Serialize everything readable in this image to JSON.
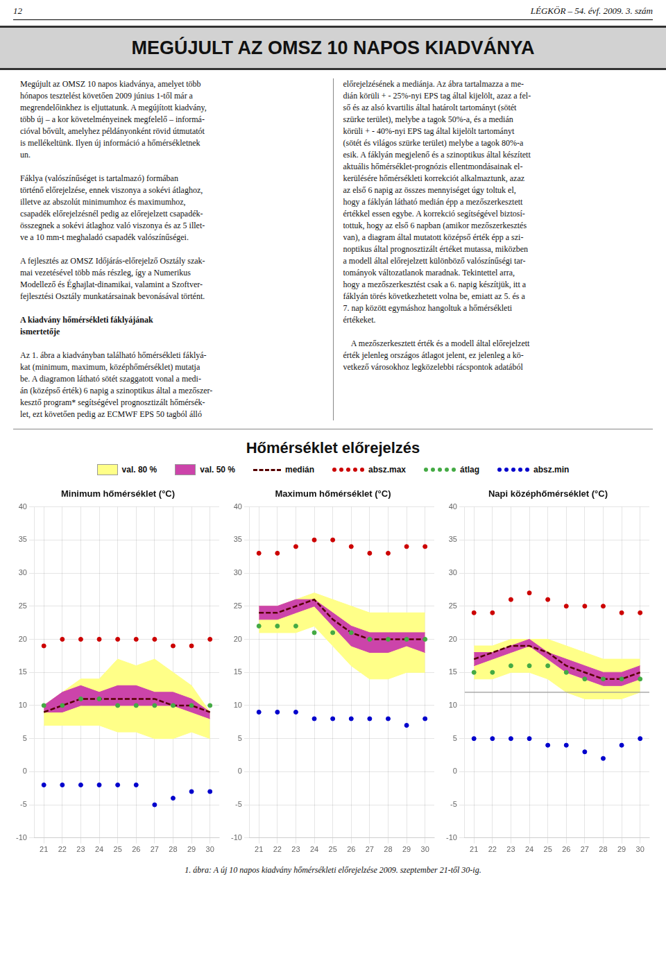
{
  "header_left": "12",
  "header_right": "LÉGKÖR – 54. évf. 2009. 3. szám",
  "page_title": "MEGÚJULT AZ OMSZ 10 NAPOS KIADVÁNYA",
  "left_column": [
    {
      "lines": [
        "Megújult az OMSZ 10 napos kiadványa, amelyet több",
        "hónapos tesztelést követően 2009 június 1-től már a",
        "megrendelőinkhez is eljuttatunk. A megújított kiadvány,",
        "több új – a kor követelményeinek megfelelő – informá-",
        "cióval bővült, amelyhez példányonként rövid útmutatót",
        "is mellékeltünk. Ilyen új információ a hőmérsékletnek",
        "un."
      ]
    },
    {
      "lines": [
        "Fáklya (valószínűséget is tartalmazó) formában",
        "történő előrejelzése, ennek viszonya a sokévi átlaghoz,",
        "illetve az abszolút minimumhoz és maximumhoz,",
        "csapadék előrejelzésnél pedig az előrejelzett csapadék-",
        "összegnek a sokévi átlaghoz való viszonya és az 5 illet-",
        "ve a 10 mm-t meghaladó csapadék valószínűségei."
      ]
    },
    {
      "lines": [
        "A fejlesztés az OMSZ Időjárás-előrejelző Osztály szak-",
        "mai vezetésével több más részleg, így a Numerikus",
        "Modellező és Éghajlat-dinamikai, valamint a Szoftver-",
        "fejlesztési Osztály munkatársainak bevonásával történt."
      ]
    },
    {
      "heading": [
        "A kiadvány hőmérsékleti fáklyájának",
        "ismertetője"
      ]
    },
    {
      "lines": [
        "Az 1. ábra a kiadványban található hőmérsékleti fáklyá-",
        "kat (minimum, maximum, középhőmérséklet) mutatja",
        "be. A diagramon látható sötét szaggatott vonal a medi-",
        "án (középső érték) 6 napig a szinoptikus által a mezőszer-",
        "kesztő program* segítségével prognosztizált hőmérsék-",
        "let, ezt követően pedig az ECMWF EPS 50 tagból álló"
      ]
    }
  ],
  "right_column": [
    {
      "lines": [
        "előrejelzésének a mediánja. Az ábra tartalmazza a me-",
        "dián körüli + - 25%-nyi EPS tag által kijelölt, azaz a fel-",
        "ső és az alsó kvartilis által határolt tartományt (sötét",
        "szürke terület), melybe a tagok 50%-a, és a medián",
        "körüli + - 40%-nyi EPS tag által kijelölt tartományt",
        "(sötét és világos szürke terület) melybe a tagok 80%-a",
        "esik. A fáklyán megjelenő és a szinoptikus által készített",
        "aktuális hőmérséklet-prognózis ellentmondásainak el-",
        "kerülésére hőmérsékleti korrekciót alkalmaztunk, azaz",
        "az első 6 napig az összes mennyiséget úgy toltuk el,",
        "hogy a fáklyán látható medián épp a mezőszerkesztett",
        "értékkel essen egybe. A korrekció segítségével biztosí-",
        "tottuk, hogy az első 6 napban (amikor mezőszerkesztés",
        "van), a diagram által mutatott középső érték épp a szi-",
        "noptikus által prognosztizált értéket mutassa, miközben",
        "a modell által előrejelzett különböző valószínűségi tar-",
        "tományok változatlanok maradnak. Tekintettel arra,",
        "hogy a mezőszerkesztést csak a 6. napig készítjük, itt a",
        "fáklyán törés következhetett volna be, emiatt az 5. és a",
        "7. nap között egymáshoz hangoltuk a hőmérsékleti",
        "értékeket."
      ]
    },
    {
      "lines": [
        "    A mezőszerkesztett érték és a modell által előrejelzett",
        "érték jelenleg országos átlagot jelent, ez jelenleg a kö-",
        "vetkező városokhoz legközelebbi rácspontok adatából"
      ]
    }
  ],
  "title": "Hőmérséklet előrejelzés",
  "subtitle": "1. ábra: A új 10 napos kiadvány hőmérsékleti előrejelzése 2009. szeptember 21-től 30-ig.",
  "chart_data": [
    {
      "type": "line",
      "title": "Minimum hőmérséklet (°C)",
      "x": [
        21,
        22,
        23,
        24,
        25,
        26,
        27,
        28,
        29,
        30
      ],
      "xlim": [
        20.5,
        30.5
      ],
      "xticks": [
        21,
        22,
        23,
        24,
        25,
        26,
        27,
        28,
        29,
        30
      ],
      "ylim": [
        -10,
        40
      ],
      "yticks": [
        -10,
        -5,
        0,
        5,
        10,
        15,
        20,
        25,
        30,
        35,
        40
      ],
      "grid": true,
      "series": [
        {
          "name": "val. 80 %",
          "type": "band",
          "color": "#FFFF88",
          "lower": [
            7,
            7,
            7,
            7,
            6,
            6,
            5,
            5,
            6,
            5
          ],
          "upper": [
            10,
            12,
            14,
            14,
            17,
            16,
            17,
            15,
            13,
            9
          ]
        },
        {
          "name": "val. 50 %",
          "type": "band",
          "color": "#CC44AA",
          "lower": [
            9,
            9,
            10,
            10,
            10,
            10,
            10,
            10,
            9,
            8
          ],
          "upper": [
            10,
            12,
            13,
            12,
            13,
            13,
            12,
            12,
            11,
            9
          ]
        },
        {
          "name": "medián",
          "type": "line",
          "color": "#550000",
          "line_style": "dashed",
          "values": [
            9,
            10,
            11,
            11,
            11,
            11,
            11,
            10,
            10,
            9
          ]
        },
        {
          "name": "absz.max",
          "type": "scatter",
          "color": "#CC0000",
          "marker": "dot",
          "values": [
            19,
            20,
            20,
            20,
            20,
            20,
            20,
            19,
            19,
            20
          ]
        },
        {
          "name": "átlag",
          "type": "scatter",
          "color": "#44AA44",
          "marker": "dot",
          "values": [
            10,
            10,
            11,
            11,
            10,
            10,
            10,
            10,
            10,
            10
          ]
        },
        {
          "name": "absz.min",
          "type": "scatter",
          "color": "#0000CC",
          "marker": "dot",
          "values": [
            -2,
            -2,
            -2,
            -2,
            -2,
            -2,
            -5,
            -4,
            -3,
            -3
          ]
        }
      ]
    },
    {
      "type": "line",
      "title": "Maximum hőmérséklet (°C)",
      "x": [
        21,
        22,
        23,
        24,
        25,
        26,
        27,
        28,
        29,
        30
      ],
      "xlim": [
        20.5,
        30.5
      ],
      "xticks": [
        21,
        22,
        23,
        24,
        25,
        26,
        27,
        28,
        29,
        30
      ],
      "ylim": [
        -10,
        40
      ],
      "yticks": [
        -10,
        -5,
        0,
        5,
        10,
        15,
        20,
        25,
        30,
        35,
        40
      ],
      "grid": true,
      "series": [
        {
          "name": "val. 80 %",
          "type": "band",
          "color": "#FFFF88",
          "lower": [
            21,
            21,
            21,
            22,
            19,
            16,
            14,
            14,
            15,
            15
          ],
          "upper": [
            25,
            25,
            26,
            27,
            26,
            25,
            24,
            24,
            24,
            24
          ]
        },
        {
          "name": "val. 50 %",
          "type": "band",
          "color": "#CC44AA",
          "lower": [
            23,
            23,
            24,
            25,
            22,
            19,
            18,
            18,
            19,
            18
          ],
          "upper": [
            25,
            25,
            26,
            26,
            24,
            22,
            21,
            21,
            21,
            21
          ]
        },
        {
          "name": "medián",
          "type": "line",
          "color": "#550000",
          "line_style": "dashed",
          "values": [
            24,
            24,
            25,
            26,
            23,
            21,
            20,
            20,
            20,
            20
          ]
        },
        {
          "name": "absz.max",
          "type": "scatter",
          "color": "#CC0000",
          "marker": "dot",
          "values": [
            33,
            33,
            34,
            35,
            35,
            34,
            33,
            33,
            34,
            34
          ]
        },
        {
          "name": "átlag",
          "type": "scatter",
          "color": "#44AA44",
          "marker": "dot",
          "values": [
            22,
            22,
            22,
            21,
            21,
            21,
            20,
            20,
            20,
            20
          ]
        },
        {
          "name": "absz.min",
          "type": "scatter",
          "color": "#0000CC",
          "marker": "dot",
          "values": [
            9,
            9,
            9,
            8,
            8,
            8,
            8,
            8,
            7,
            8
          ]
        }
      ]
    },
    {
      "type": "line",
      "title": "Napi középhőmérséklet (°C)",
      "x": [
        21,
        22,
        23,
        24,
        25,
        26,
        27,
        28,
        29,
        30
      ],
      "xlim": [
        20.5,
        30.5
      ],
      "xticks": [
        21,
        22,
        23,
        24,
        25,
        26,
        27,
        28,
        29,
        30
      ],
      "ylim": [
        -10,
        40
      ],
      "yticks": [
        -10,
        -5,
        0,
        5,
        10,
        15,
        20,
        25,
        30,
        35,
        40
      ],
      "grid": true,
      "reference_line": {
        "y": 12,
        "color": "#999999"
      },
      "series": [
        {
          "name": "val. 80 %",
          "type": "band",
          "color": "#FFFF88",
          "lower": [
            14,
            14,
            15,
            15,
            14,
            12,
            11,
            11,
            11,
            12
          ],
          "upper": [
            19,
            19,
            20,
            20,
            20,
            19,
            18,
            17,
            17,
            17
          ]
        },
        {
          "name": "val. 50 %",
          "type": "band",
          "color": "#CC44AA",
          "lower": [
            16,
            17,
            18,
            19,
            17,
            15,
            14,
            13,
            13,
            14
          ],
          "upper": [
            18,
            18,
            19,
            20,
            18,
            17,
            16,
            15,
            15,
            16
          ]
        },
        {
          "name": "medián",
          "type": "line",
          "color": "#550000",
          "line_style": "dashed",
          "values": [
            17,
            18,
            19,
            19,
            18,
            16,
            15,
            14,
            14,
            15
          ]
        },
        {
          "name": "absz.max",
          "type": "scatter",
          "color": "#CC0000",
          "marker": "dot",
          "values": [
            24,
            24,
            26,
            27,
            26,
            25,
            25,
            25,
            24,
            24
          ]
        },
        {
          "name": "átlag",
          "type": "scatter",
          "color": "#44AA44",
          "marker": "dot",
          "values": [
            15,
            15,
            16,
            16,
            16,
            15,
            14,
            14,
            14,
            14
          ]
        },
        {
          "name": "absz.min",
          "type": "scatter",
          "color": "#0000CC",
          "marker": "dot",
          "values": [
            5,
            5,
            5,
            5,
            4,
            4,
            3,
            2,
            4,
            5
          ]
        }
      ]
    }
  ]
}
